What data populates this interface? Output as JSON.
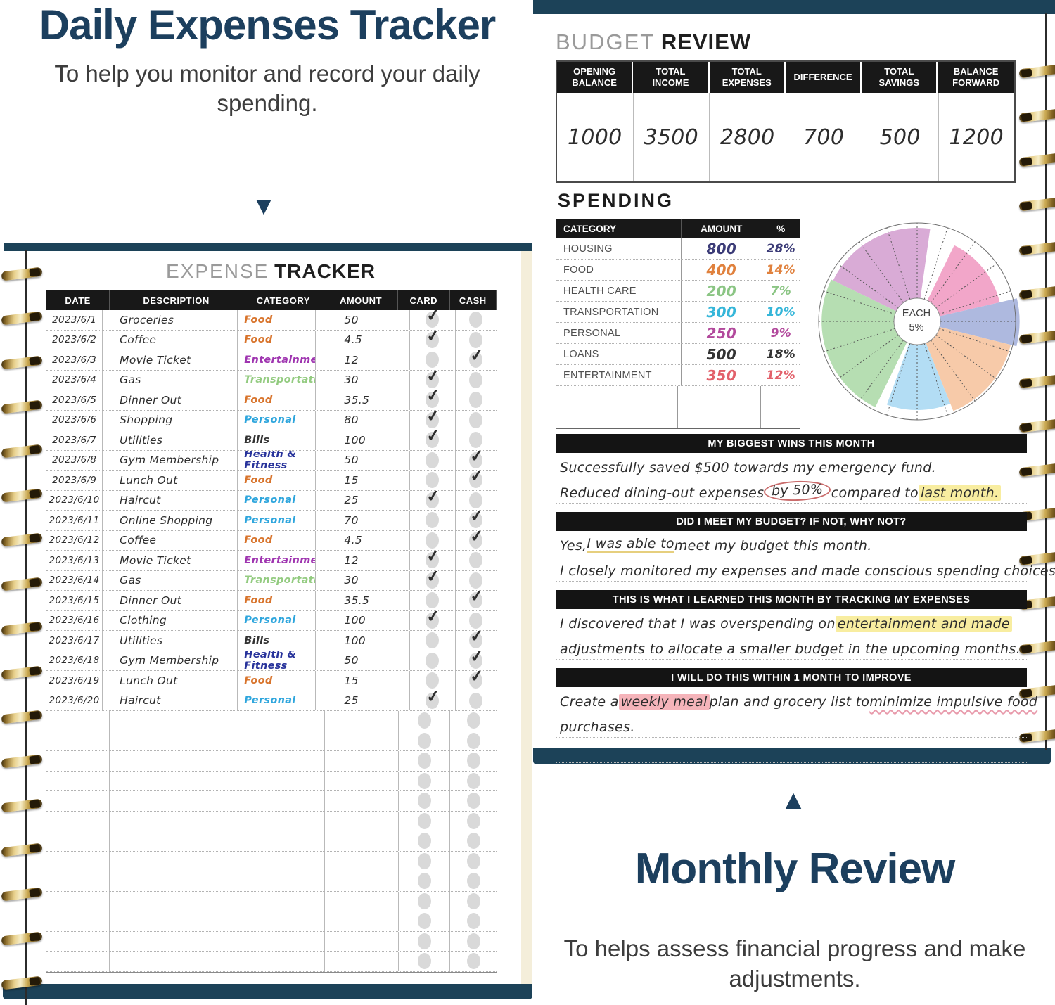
{
  "colors": {
    "navy": "#1c3f5e",
    "cover_navy": "#1c4258",
    "spiral_gold": "#c9a85c",
    "table_header_black": "#181818",
    "highlight_yellow": "#f8eda0",
    "highlight_pink": "#f5b4ba",
    "circle_red": "#c96b6b",
    "checkbox_gray": "#d9d9d9"
  },
  "left_panel": {
    "title": "Daily Expenses Tracker",
    "subtitle": "To help you monitor and record your daily spending.",
    "arrow": "▼"
  },
  "right_panel": {
    "arrow": "▲",
    "title": "Monthly Review",
    "subtitle": "To helps assess financial progress and make adjustments."
  },
  "expense_tracker": {
    "title_light": "EXPENSE",
    "title_bold": "TRACKER",
    "columns": [
      "DATE",
      "DESCRIPTION",
      "CATEGORY",
      "AMOUNT",
      "CARD",
      "CASH"
    ],
    "category_colors": {
      "Food": "#d8742c",
      "Entertainment": "#9f35b0",
      "Transportation": "#93cb80",
      "Personal": "#2fa6dd",
      "Bills": "#333333",
      "Health & Fitness": "#28339b"
    },
    "rows": [
      {
        "date": "2023/6/1",
        "description": "Groceries",
        "category": "Food",
        "amount": "50",
        "paid": "card"
      },
      {
        "date": "2023/6/2",
        "description": "Coffee",
        "category": "Food",
        "amount": "4.5",
        "paid": "card"
      },
      {
        "date": "2023/6/3",
        "description": "Movie Ticket",
        "category": "Entertainment",
        "amount": "12",
        "paid": "cash"
      },
      {
        "date": "2023/6/4",
        "description": "Gas",
        "category": "Transportation",
        "amount": "30",
        "paid": "card"
      },
      {
        "date": "2023/6/5",
        "description": "Dinner Out",
        "category": "Food",
        "amount": "35.5",
        "paid": "card"
      },
      {
        "date": "2023/6/6",
        "description": "Shopping",
        "category": "Personal",
        "amount": "80",
        "paid": "card"
      },
      {
        "date": "2023/6/7",
        "description": "Utilities",
        "category": "Bills",
        "amount": "100",
        "paid": "card"
      },
      {
        "date": "2023/6/8",
        "description": "Gym Membership",
        "category": "Health & Fitness",
        "amount": "50",
        "paid": "cash"
      },
      {
        "date": "2023/6/9",
        "description": "Lunch Out",
        "category": "Food",
        "amount": "15",
        "paid": "cash"
      },
      {
        "date": "2023/6/10",
        "description": "Haircut",
        "category": "Personal",
        "amount": "25",
        "paid": "card"
      },
      {
        "date": "2023/6/11",
        "description": "Online Shopping",
        "category": "Personal",
        "amount": "70",
        "paid": "cash"
      },
      {
        "date": "2023/6/12",
        "description": "Coffee",
        "category": "Food",
        "amount": "4.5",
        "paid": "cash"
      },
      {
        "date": "2023/6/13",
        "description": "Movie Ticket",
        "category": "Entertainment",
        "amount": "12",
        "paid": "card"
      },
      {
        "date": "2023/6/14",
        "description": "Gas",
        "category": "Transportation",
        "amount": "30",
        "paid": "card"
      },
      {
        "date": "2023/6/15",
        "description": "Dinner Out",
        "category": "Food",
        "amount": "35.5",
        "paid": "cash"
      },
      {
        "date": "2023/6/16",
        "description": "Clothing",
        "category": "Personal",
        "amount": "100",
        "paid": "card"
      },
      {
        "date": "2023/6/17",
        "description": "Utilities",
        "category": "Bills",
        "amount": "100",
        "paid": "cash"
      },
      {
        "date": "2023/6/18",
        "description": "Gym Membership",
        "category": "Health & Fitness",
        "amount": "50",
        "paid": "cash"
      },
      {
        "date": "2023/6/19",
        "description": "Lunch Out",
        "category": "Food",
        "amount": "15",
        "paid": "cash"
      },
      {
        "date": "2023/6/20",
        "description": "Haircut",
        "category": "Personal",
        "amount": "25",
        "paid": "card"
      }
    ],
    "empty_row_count": 13
  },
  "budget_review": {
    "title_light": "BUDGET",
    "title_bold": "REVIEW",
    "columns": [
      "OPENING BALANCE",
      "TOTAL INCOME",
      "TOTAL EXPENSES",
      "DIFFERENCE",
      "TOTAL SAVINGS",
      "BALANCE FORWARD"
    ],
    "values": [
      "1000",
      "3500",
      "2800",
      "700",
      "500",
      "1200"
    ]
  },
  "spending": {
    "title": "SPENDING",
    "columns": [
      "CATEGORY",
      "AMOUNT",
      "%"
    ],
    "rows": [
      {
        "category": "HOUSING",
        "amount": "800",
        "percent": "28%",
        "color": "#3b3b77"
      },
      {
        "category": "FOOD",
        "amount": "400",
        "percent": "14%",
        "color": "#e0813d"
      },
      {
        "category": "HEALTH CARE",
        "amount": "200",
        "percent": "7%",
        "color": "#8bc584"
      },
      {
        "category": "TRANSPORTATION",
        "amount": "300",
        "percent": "10%",
        "color": "#35b6d9"
      },
      {
        "category": "PERSONAL",
        "amount": "250",
        "percent": "9%",
        "color": "#b2499c"
      },
      {
        "category": "LOANS",
        "amount": "500",
        "percent": "18%",
        "color": "#333333"
      },
      {
        "category": "ENTERTAINMENT",
        "amount": "350",
        "percent": "12%",
        "color": "#e2606a"
      }
    ],
    "empty_row_count": 2
  },
  "chart_data": {
    "type": "pie",
    "title": "SPENDING",
    "center_label": "EACH\n5%",
    "divisions": 20,
    "division_percent": 5,
    "categories": [
      "HOUSING",
      "FOOD",
      "HEALTH CARE",
      "TRANSPORTATION",
      "PERSONAL",
      "LOANS",
      "ENTERTAINMENT"
    ],
    "values": [
      800,
      400,
      200,
      300,
      250,
      500,
      350
    ],
    "percents": [
      28,
      14,
      7,
      10,
      9,
      18,
      12
    ],
    "wedges": [
      {
        "name": "mauve",
        "color": "#d9abd6",
        "start_deg": 296,
        "end_deg": 368,
        "radius": 0.95
      },
      {
        "name": "pink",
        "color": "#f2a6c9",
        "start_deg": 26,
        "end_deg": 77,
        "radius": 0.86
      },
      {
        "name": "periwinkle",
        "color": "#aeb9df",
        "start_deg": 77,
        "end_deg": 104,
        "radius": 1.04
      },
      {
        "name": "peach",
        "color": "#f7caa9",
        "start_deg": 104,
        "end_deg": 158,
        "radius": 0.98
      },
      {
        "name": "light-blue",
        "color": "#b3ddf4",
        "start_deg": 158,
        "end_deg": 200,
        "radius": 0.9
      },
      {
        "name": "green",
        "color": "#b6deb2",
        "start_deg": 206,
        "end_deg": 296,
        "radius": 0.97
      }
    ]
  },
  "review_sections": [
    {
      "header": "MY BIGGEST WINS THIS MONTH",
      "lines": [
        [
          {
            "t": "Successfully saved $500 towards my emergency fund."
          }
        ],
        [
          {
            "t": "Reduced dining-out expenses "
          },
          {
            "t": "by 50%",
            "style": "circled"
          },
          {
            "t": " compared to "
          },
          {
            "t": "last month.",
            "style": "hl-yellow"
          }
        ]
      ],
      "empty_lines": 0
    },
    {
      "header": "DID I MEET MY BUDGET? IF NOT, WHY NOT?",
      "lines": [
        [
          {
            "t": "Yes, "
          },
          {
            "t": "I was able to",
            "style": "ul-yellow"
          },
          {
            "t": " meet my budget this month."
          }
        ],
        [
          {
            "t": "I closely monitored my expenses and made conscious spending choices."
          }
        ]
      ],
      "empty_lines": 0
    },
    {
      "header": "THIS IS WHAT I LEARNED THIS MONTH BY TRACKING MY EXPENSES",
      "lines": [
        [
          {
            "t": "I discovered that I was overspending on "
          },
          {
            "t": "entertainment and made",
            "style": "hl-yellow"
          }
        ],
        [
          {
            "t": "adjustments to allocate a smaller budget in the upcoming months."
          }
        ]
      ],
      "empty_lines": 0
    },
    {
      "header": "I WILL DO THIS WITHIN 1 MONTH TO IMPROVE",
      "lines": [
        [
          {
            "t": "Create a "
          },
          {
            "t": "weekly meal",
            "style": "hl-pink"
          },
          {
            "t": " plan and grocery list to "
          },
          {
            "t": "minimize impulsive food",
            "style": "ul-wavy-pink"
          }
        ],
        [
          {
            "t": "purchases."
          }
        ]
      ],
      "empty_lines": 1
    }
  ]
}
